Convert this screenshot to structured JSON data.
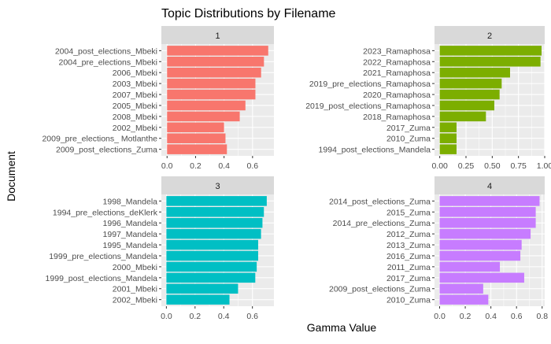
{
  "title": "Topic Distributions by Filename",
  "xlabel": "Gamma Value",
  "ylabel": "Document",
  "chart_data": [
    {
      "type": "bar",
      "orientation": "horizontal",
      "facet": "1",
      "color": "#F8766D",
      "categories": [
        "2004_post_elections_Mbeki",
        "2004_pre_elections_Mbeki",
        "2006_Mbeki",
        "2003_Mbeki",
        "2007_Mbeki",
        "2005_Mbeki",
        "2008_Mbeki",
        "2002_Mbeki",
        "2009_pre_elections_ Motlanthe",
        "2009_post_elections_Zuma"
      ],
      "values": [
        0.71,
        0.68,
        0.66,
        0.62,
        0.62,
        0.55,
        0.51,
        0.4,
        0.41,
        0.42
      ],
      "xlim": [
        -0.04,
        0.75
      ],
      "xticks": [
        "0.0",
        "0.2",
        "0.4",
        "0.6"
      ],
      "xtick_values": [
        0,
        0.2,
        0.4,
        0.6
      ]
    },
    {
      "type": "bar",
      "orientation": "horizontal",
      "facet": "2",
      "color": "#7CAE00",
      "categories": [
        "2023_Ramaphosa",
        "2022_Ramaphosa",
        "2021_Ramaphosa",
        "2019_pre_elections_Ramaphosa",
        "2020_Ramaphosa",
        "2019_post_elections_Ramaphosa",
        "2018_Ramaphosa",
        "2017_Zuma",
        "2010_Zuma",
        "1994_post_elections_Mandela"
      ],
      "values": [
        0.97,
        0.96,
        0.67,
        0.59,
        0.57,
        0.52,
        0.44,
        0.16,
        0.16,
        0.16
      ],
      "xlim": [
        -0.05,
        1.0
      ],
      "xticks": [
        "0.00",
        "0.25",
        "0.50",
        "0.75",
        "1.00"
      ],
      "xtick_values": [
        0,
        0.25,
        0.5,
        0.75,
        1.0
      ]
    },
    {
      "type": "bar",
      "orientation": "horizontal",
      "facet": "3",
      "color": "#00BFC4",
      "categories": [
        "1998_Mandela",
        "1994_pre_elections_deKlerk",
        "1996_Mandela",
        "1997_Mandela",
        "1995_Mandela",
        "1999_pre_elections_Mandela",
        "2000_Mbeki",
        "1999_post_elections_Mandela",
        "2001_Mbeki",
        "2002_Mbeki"
      ],
      "values": [
        0.7,
        0.68,
        0.67,
        0.66,
        0.64,
        0.64,
        0.63,
        0.62,
        0.5,
        0.44
      ],
      "xlim": [
        -0.035,
        0.75
      ],
      "xticks": [
        "0.0",
        "0.2",
        "0.4",
        "0.6"
      ],
      "xtick_values": [
        0,
        0.2,
        0.4,
        0.6
      ]
    },
    {
      "type": "bar",
      "orientation": "horizontal",
      "facet": "4",
      "color": "#C77CFF",
      "categories": [
        "2014_post_elections_Zuma",
        "2015_Zuma",
        "2014_pre_elections_Zuma",
        "2012_Zuma",
        "2013_Zuma",
        "2016_Zuma",
        "2011_Zuma",
        "2017_Zuma",
        "2009_post_elections_Zuma",
        "2010_Zuma"
      ],
      "values": [
        0.78,
        0.75,
        0.75,
        0.71,
        0.64,
        0.63,
        0.47,
        0.66,
        0.34,
        0.38
      ],
      "xlim": [
        -0.04,
        0.82
      ],
      "xticks": [
        "0.0",
        "0.2",
        "0.4",
        "0.6",
        "0.8"
      ],
      "xtick_values": [
        0,
        0.2,
        0.4,
        0.6,
        0.8
      ]
    }
  ]
}
